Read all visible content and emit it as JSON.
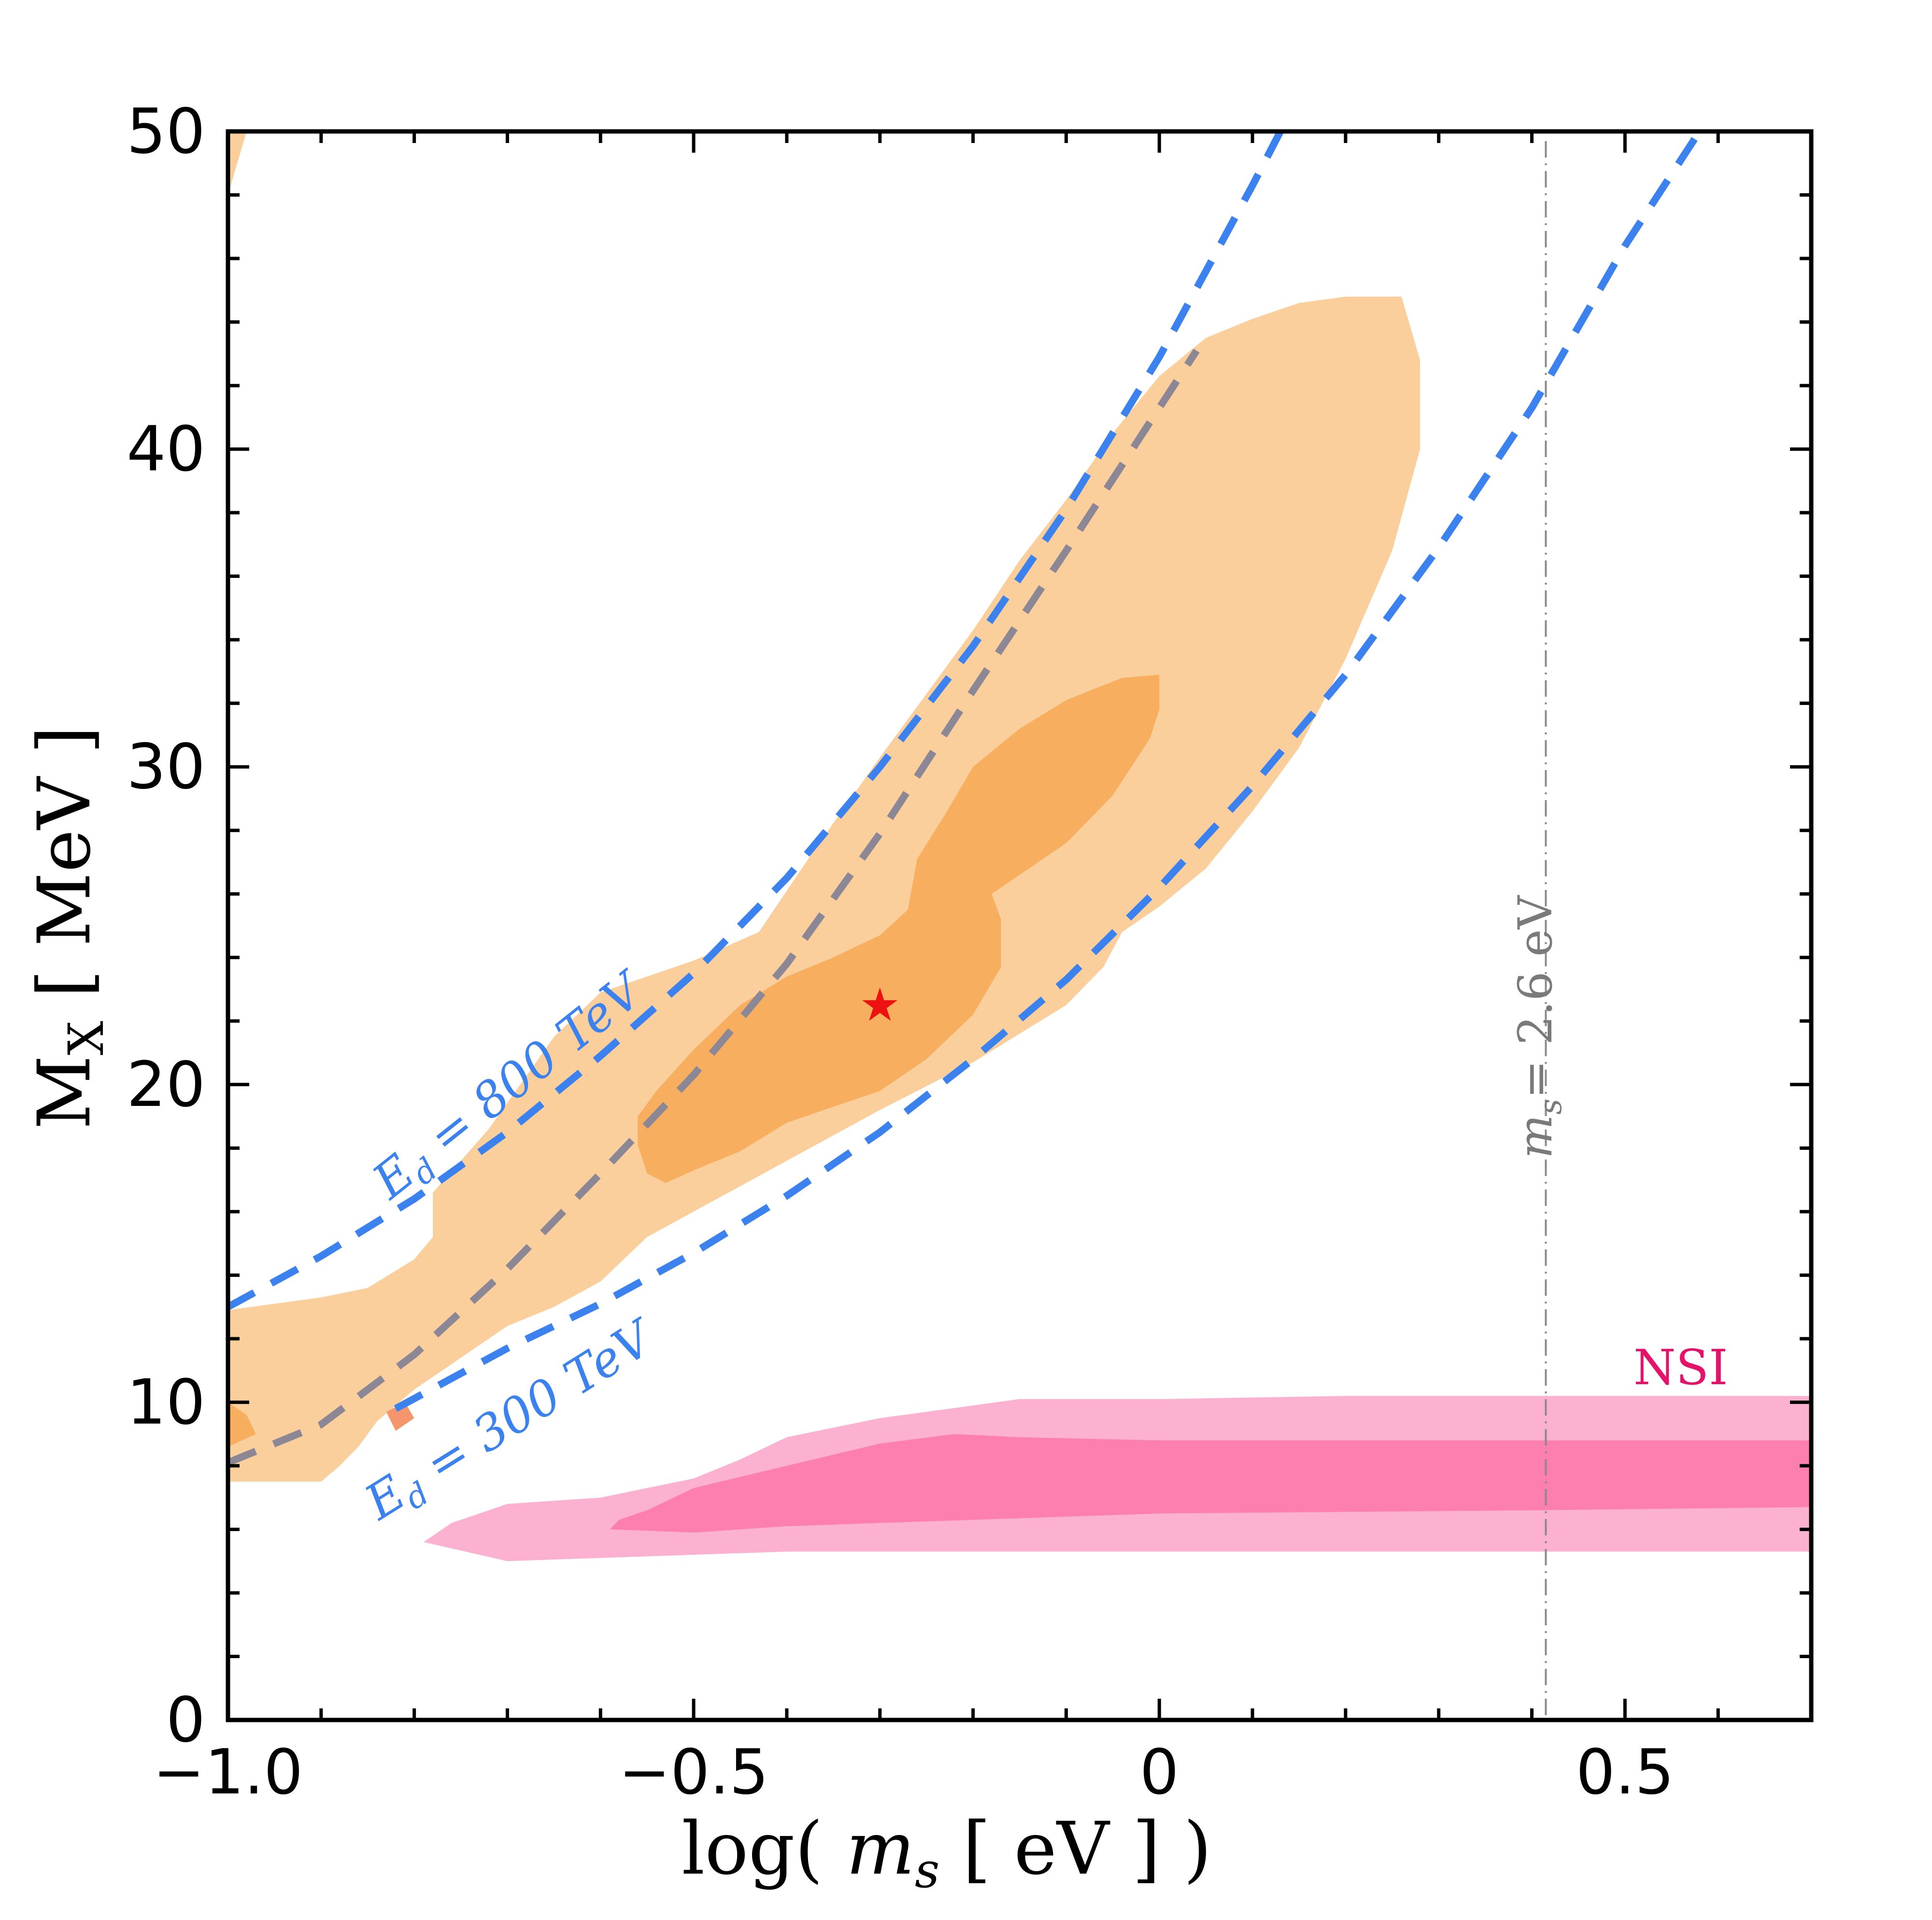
{
  "chart_data": {
    "type": "contour",
    "title": "",
    "xlabel": "log( m_s [eV] )",
    "xlabel_parts": {
      "func": "log",
      "var": "m",
      "sub": "s",
      "unit": "eV"
    },
    "ylabel": "M_X [MeV]",
    "ylabel_parts": {
      "main": "M",
      "sub": "X",
      "unit": "MeV"
    },
    "xlim": [
      -1.0,
      0.7
    ],
    "ylim": [
      0,
      50
    ],
    "xticks": [
      {
        "value": -1.0,
        "label": "−1.0"
      },
      {
        "value": -0.5,
        "label": "−0.5"
      },
      {
        "value": 0,
        "label": "0"
      },
      {
        "value": 0.5,
        "label": "0.5"
      }
    ],
    "yticks": [
      {
        "value": 0,
        "label": "0"
      },
      {
        "value": 10,
        "label": "10"
      },
      {
        "value": 20,
        "label": "20"
      },
      {
        "value": 30,
        "label": "30"
      },
      {
        "value": 40,
        "label": "40"
      },
      {
        "value": 50,
        "label": "50"
      }
    ],
    "x_minor_step": 0.1,
    "y_minor_step": 2,
    "regions": [
      {
        "name": "fit-2sigma",
        "color": "#fbcf9c",
        "polygons": [
          [
            [
              -1.0,
              12.9
            ],
            [
              -0.95,
              13.1
            ],
            [
              -0.9,
              13.3
            ],
            [
              -0.85,
              13.6
            ],
            [
              -0.8,
              14.5
            ],
            [
              -0.78,
              15.2
            ],
            [
              -0.78,
              16.6
            ],
            [
              -0.72,
              18.6
            ],
            [
              -0.65,
              21.5
            ],
            [
              -0.6,
              22.9
            ],
            [
              -0.5,
              23.9
            ],
            [
              -0.43,
              24.8
            ],
            [
              -0.4,
              26.1
            ],
            [
              -0.37,
              27.4
            ],
            [
              -0.3,
              30.3
            ],
            [
              -0.25,
              32.3
            ],
            [
              -0.2,
              34.3
            ],
            [
              -0.15,
              36.5
            ],
            [
              -0.1,
              38.4
            ],
            [
              -0.05,
              40.5
            ],
            [
              0,
              42.3
            ],
            [
              0.05,
              43.5
            ],
            [
              0.1,
              44.1
            ],
            [
              0.15,
              44.6
            ],
            [
              0.2,
              44.8
            ],
            [
              0.26,
              44.8
            ],
            [
              0.28,
              42.8
            ],
            [
              0.28,
              40.0
            ],
            [
              0.25,
              36.8
            ],
            [
              0.2,
              33.4
            ],
            [
              0.15,
              30.6
            ],
            [
              0.1,
              28.6
            ],
            [
              0.05,
              26.8
            ],
            [
              0,
              25.6
            ],
            [
              -0.04,
              24.8
            ],
            [
              -0.06,
              23.7
            ],
            [
              -0.1,
              22.5
            ],
            [
              -0.2,
              20.7
            ],
            [
              -0.3,
              19.2
            ],
            [
              -0.4,
              17.6
            ],
            [
              -0.5,
              16.0
            ],
            [
              -0.55,
              15.2
            ],
            [
              -0.6,
              13.8
            ],
            [
              -0.65,
              13.0
            ],
            [
              -0.7,
              12.4
            ],
            [
              -0.75,
              11.4
            ],
            [
              -0.8,
              10.4
            ],
            [
              -0.84,
              9.4
            ],
            [
              -0.86,
              8.6
            ],
            [
              -0.88,
              8.0
            ],
            [
              -0.9,
              7.5
            ],
            [
              -1.0,
              7.5
            ]
          ],
          [
            [
              -1.0,
              48.0
            ],
            [
              -0.98,
              50.0
            ],
            [
              -1.0,
              50.0
            ]
          ]
        ]
      },
      {
        "name": "fit-1sigma",
        "color": "#f7ae5e",
        "polygons": [
          [
            [
              -0.56,
              18.1
            ],
            [
              -0.55,
              17.2
            ],
            [
              -0.53,
              16.9
            ],
            [
              -0.5,
              17.3
            ],
            [
              -0.45,
              17.9
            ],
            [
              -0.4,
              18.8
            ],
            [
              -0.3,
              19.8
            ],
            [
              -0.25,
              20.8
            ],
            [
              -0.2,
              22.2
            ],
            [
              -0.17,
              23.7
            ],
            [
              -0.17,
              25.2
            ],
            [
              -0.18,
              26.0
            ],
            [
              -0.15,
              26.6
            ],
            [
              -0.1,
              27.6
            ],
            [
              -0.05,
              29.1
            ],
            [
              -0.01,
              30.9
            ],
            [
              0,
              31.8
            ],
            [
              0,
              32.9
            ],
            [
              -0.04,
              32.8
            ],
            [
              -0.1,
              32.1
            ],
            [
              -0.15,
              31.2
            ],
            [
              -0.2,
              30.0
            ],
            [
              -0.23,
              28.5
            ],
            [
              -0.26,
              27.1
            ],
            [
              -0.27,
              25.5
            ],
            [
              -0.3,
              24.7
            ],
            [
              -0.35,
              24.0
            ],
            [
              -0.4,
              23.4
            ],
            [
              -0.45,
              22.5
            ],
            [
              -0.5,
              21.1
            ],
            [
              -0.54,
              19.8
            ],
            [
              -0.56,
              19.0
            ]
          ],
          [
            [
              -1.0,
              10.0
            ],
            [
              -0.98,
              9.6
            ],
            [
              -0.97,
              9.0
            ],
            [
              -1.0,
              8.6
            ]
          ]
        ]
      },
      {
        "name": "fit-1sigma-speck",
        "color": "#f5956c",
        "polygons": [
          [
            [
              -0.83,
              9.7
            ],
            [
              -0.81,
              10.0
            ],
            [
              -0.8,
              9.5
            ],
            [
              -0.82,
              9.1
            ]
          ]
        ]
      },
      {
        "name": "nsi-2sigma",
        "color": "#fdb1d1",
        "polygons": [
          [
            [
              -0.79,
              5.6
            ],
            [
              -0.7,
              5.0
            ],
            [
              -0.6,
              5.1
            ],
            [
              -0.4,
              5.3
            ],
            [
              -0.2,
              5.3
            ],
            [
              0,
              5.3
            ],
            [
              0.2,
              5.3
            ],
            [
              0.4,
              5.3
            ],
            [
              0.7,
              5.3
            ],
            [
              0.7,
              10.2
            ],
            [
              0.4,
              10.2
            ],
            [
              0.2,
              10.2
            ],
            [
              0,
              10.1
            ],
            [
              -0.15,
              10.1
            ],
            [
              -0.2,
              9.9
            ],
            [
              -0.3,
              9.5
            ],
            [
              -0.4,
              8.9
            ],
            [
              -0.45,
              8.2
            ],
            [
              -0.5,
              7.6
            ],
            [
              -0.6,
              7.0
            ],
            [
              -0.7,
              6.8
            ],
            [
              -0.76,
              6.2
            ]
          ]
        ]
      },
      {
        "name": "nsi-1sigma",
        "color": "#fc7fb0",
        "polygons": [
          [
            [
              -0.59,
              6.0
            ],
            [
              -0.5,
              5.9
            ],
            [
              -0.4,
              6.1
            ],
            [
              -0.2,
              6.3
            ],
            [
              0,
              6.5
            ],
            [
              0.4,
              6.6
            ],
            [
              0.7,
              6.7
            ],
            [
              0.7,
              8.8
            ],
            [
              0.4,
              8.8
            ],
            [
              0,
              8.8
            ],
            [
              -0.15,
              8.9
            ],
            [
              -0.22,
              9.0
            ],
            [
              -0.3,
              8.7
            ],
            [
              -0.4,
              8.0
            ],
            [
              -0.5,
              7.3
            ],
            [
              -0.55,
              6.6
            ],
            [
              -0.58,
              6.3
            ]
          ]
        ]
      }
    ],
    "curves": [
      {
        "name": "Ed-800-TeV",
        "color": "#3b82ef",
        "dash": "long",
        "points": [
          [
            -1.0,
            13.0
          ],
          [
            -0.9,
            14.6
          ],
          [
            -0.8,
            16.4
          ],
          [
            -0.7,
            18.5
          ],
          [
            -0.6,
            20.9
          ],
          [
            -0.5,
            23.5
          ],
          [
            -0.4,
            26.5
          ],
          [
            -0.3,
            30.0
          ],
          [
            -0.2,
            33.8
          ],
          [
            -0.1,
            38.1
          ],
          [
            0,
            42.9
          ],
          [
            0.1,
            48.3
          ],
          [
            0.13,
            50.0
          ]
        ]
      },
      {
        "name": "Ed-300-TeV",
        "color": "#3b82ef",
        "dash": "long",
        "points": [
          [
            -0.82,
            9.8
          ],
          [
            -0.7,
            11.7
          ],
          [
            -0.6,
            13.1
          ],
          [
            -0.5,
            14.7
          ],
          [
            -0.4,
            16.5
          ],
          [
            -0.3,
            18.5
          ],
          [
            -0.2,
            20.8
          ],
          [
            -0.1,
            23.3
          ],
          [
            0,
            26.2
          ],
          [
            0.1,
            29.4
          ],
          [
            0.2,
            32.9
          ],
          [
            0.3,
            36.9
          ],
          [
            0.4,
            41.3
          ],
          [
            0.5,
            46.4
          ],
          [
            0.58,
            50.0
          ]
        ]
      },
      {
        "name": "best-fit-trend",
        "color": "#8c8794",
        "dash": "long",
        "points": [
          [
            -1.0,
            8.1
          ],
          [
            -0.9,
            9.3
          ],
          [
            -0.8,
            11.5
          ],
          [
            -0.7,
            14.2
          ],
          [
            -0.6,
            17.2
          ],
          [
            -0.5,
            20.3
          ],
          [
            -0.4,
            23.8
          ],
          [
            -0.3,
            27.9
          ],
          [
            -0.2,
            32.4
          ],
          [
            -0.1,
            36.8
          ],
          [
            0,
            41.3
          ],
          [
            0.04,
            43.1
          ]
        ]
      }
    ],
    "vline": {
      "x": 0.415,
      "color": "#8a8a8a",
      "label": "= 2.6 eV",
      "label_var": "m",
      "label_sub": "s"
    },
    "best_fit": {
      "x": -0.3,
      "y": 22.5,
      "symbol": "★",
      "color": "#ee1111"
    },
    "annotations": {
      "ed_800": {
        "var": "E",
        "sub": "d",
        "text": " = 800 TeV",
        "color": "#3b82ef"
      },
      "ed_300": {
        "var": "E",
        "sub": "d",
        "text": " = 300 TeV",
        "color": "#3b82ef"
      },
      "nsi": {
        "text": "NSI",
        "color": "#e5126a"
      }
    }
  }
}
